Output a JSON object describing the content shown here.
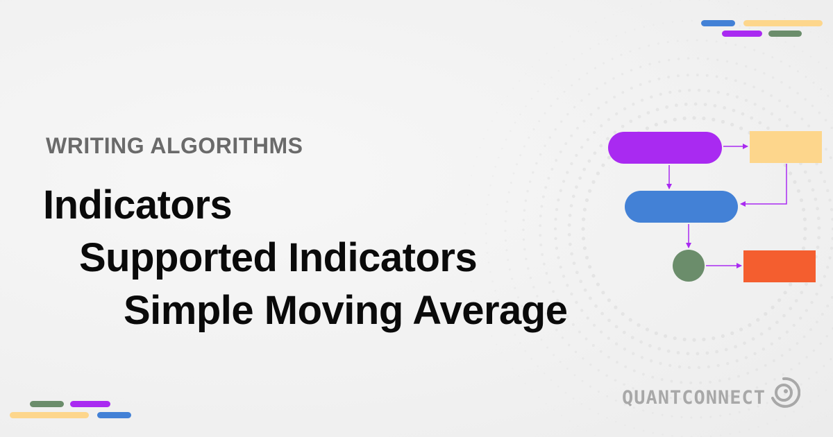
{
  "header": {
    "eyebrow": "WRITING ALGORITHMS"
  },
  "title": {
    "lines": [
      "Indicators",
      "Supported Indicators",
      "Simple Moving Average"
    ]
  },
  "brand": {
    "name": "QUANTCONNECT",
    "icon": "quantconnect-logo-icon"
  },
  "colors": {
    "purple": "#a92af1",
    "yellow": "#fdd68c",
    "blue": "#4381d6",
    "green": "#6b8d6b",
    "orange": "#f45e2f",
    "text_dark": "#0a0a0a",
    "text_gray": "#6a6a6a"
  }
}
